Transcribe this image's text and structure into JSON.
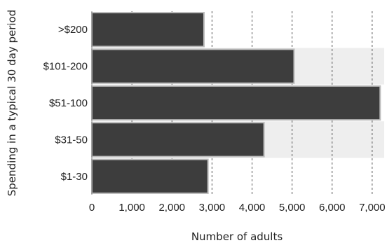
{
  "chart_data": {
    "type": "bar",
    "orientation": "horizontal",
    "categories": [
      ">$200",
      "$101-200",
      "$51-100",
      "$31-50",
      "$1-30"
    ],
    "values": [
      2800,
      5050,
      7200,
      4300,
      2900
    ],
    "xlabel": "Number of adults",
    "ylabel": "Spending in a typical 30 day period",
    "xlim": [
      0,
      7300
    ],
    "xticks": [
      0,
      1000,
      2000,
      3000,
      4000,
      5000,
      6000,
      7000
    ],
    "xtick_labels": [
      "0",
      "1,000",
      "2,000",
      "3,000",
      "4,000",
      "5,000",
      "6,000",
      "7,000"
    ],
    "grid": "vertical dashed",
    "row_band_colors": [
      "#ffffff",
      "#eeeeee"
    ],
    "bar_color": "#3d3d3d",
    "bar_outline_color": "#bdbdbd"
  }
}
